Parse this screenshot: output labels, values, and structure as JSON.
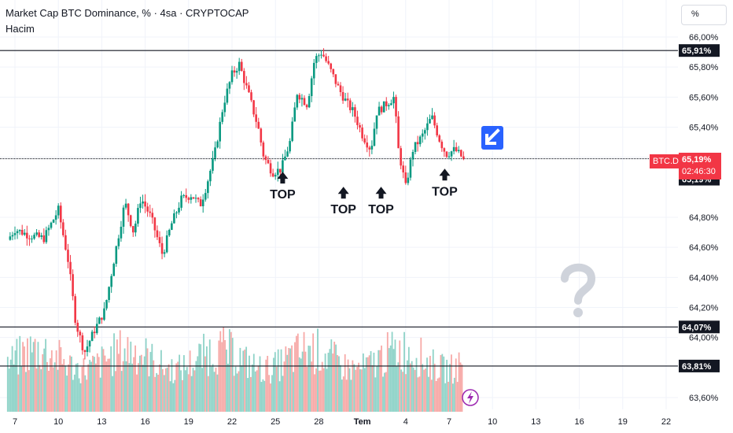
{
  "header": {
    "title": "Market Cap BTC Dominance, % · 4sa · CRYPTOCAP",
    "subtitle": "Hacim"
  },
  "scale_button": "%",
  "symbol_tag": "BTC.D",
  "last_price": {
    "value": "65,19%",
    "countdown": "02:46:30",
    "color": "#f23645"
  },
  "colors": {
    "up": "#089981",
    "down": "#f23645",
    "vol_up": "#8fd3c8",
    "vol_down": "#f7a9a7",
    "line": "#131722",
    "grid": "#f0f3fa",
    "arrow_badge": "#2962ff",
    "question": "#cfd3db"
  },
  "icons": [
    "arrow-down-left-icon",
    "question-mark-icon",
    "lightning-icon",
    "arrow-up-icon"
  ],
  "chart_data": {
    "type": "candlestick",
    "y_axis": {
      "ticks": [
        "66,00%",
        "65,80%",
        "65,60%",
        "65,40%",
        "65,20%",
        "64,80%",
        "64,60%",
        "64,40%",
        "64,20%",
        "64,00%",
        "63,60%"
      ],
      "tick_values": [
        66.0,
        65.8,
        65.6,
        65.4,
        65.2,
        64.8,
        64.6,
        64.4,
        64.2,
        64.0,
        63.6
      ],
      "ylim": [
        63.55,
        66.05
      ]
    },
    "x_axis": {
      "ticks": [
        "7",
        "10",
        "13",
        "16",
        "19",
        "22",
        "25",
        "28",
        "Tem",
        "4",
        "7",
        "10",
        "13",
        "16",
        "19",
        "22"
      ],
      "tick_day_index": [
        0,
        3,
        6,
        9,
        12,
        15,
        18,
        21,
        24,
        27,
        30,
        33,
        36,
        39,
        42,
        45
      ]
    },
    "horizontal_lines": [
      {
        "value": 65.91,
        "label": "65,91%"
      },
      {
        "value": 65.19,
        "label": "65,19%"
      },
      {
        "value": 64.07,
        "label": "64,07%"
      },
      {
        "value": 63.81,
        "label": "63,81%"
      }
    ],
    "annotations": [
      {
        "text": "TOP",
        "day_index": 18.5,
        "value": 65.03
      },
      {
        "text": "TOP",
        "day_index": 22.7,
        "value": 64.93
      },
      {
        "text": "TOP",
        "day_index": 25.3,
        "value": 64.93
      },
      {
        "text": "TOP",
        "day_index": 29.7,
        "value": 65.05
      }
    ],
    "close_anchors": [
      [
        -0.5,
        64.65
      ],
      [
        0.0,
        64.72
      ],
      [
        1.0,
        64.68
      ],
      [
        2.0,
        64.66
      ],
      [
        3.0,
        64.85
      ],
      [
        3.7,
        64.5
      ],
      [
        4.2,
        64.1
      ],
      [
        4.8,
        63.9
      ],
      [
        5.5,
        64.05
      ],
      [
        6.2,
        64.18
      ],
      [
        7.0,
        64.6
      ],
      [
        7.6,
        64.9
      ],
      [
        8.2,
        64.7
      ],
      [
        8.7,
        64.93
      ],
      [
        9.4,
        64.8
      ],
      [
        10.2,
        64.55
      ],
      [
        10.8,
        64.75
      ],
      [
        11.5,
        64.92
      ],
      [
        12.2,
        64.95
      ],
      [
        12.8,
        64.88
      ],
      [
        13.2,
        65.0
      ],
      [
        13.8,
        65.22
      ],
      [
        14.4,
        65.55
      ],
      [
        15.0,
        65.75
      ],
      [
        15.5,
        65.82
      ],
      [
        16.2,
        65.6
      ],
      [
        16.8,
        65.4
      ],
      [
        17.2,
        65.2
      ],
      [
        17.8,
        65.1
      ],
      [
        18.4,
        65.12
      ],
      [
        19.0,
        65.3
      ],
      [
        19.5,
        65.63
      ],
      [
        20.2,
        65.55
      ],
      [
        20.7,
        65.85
      ],
      [
        21.2,
        65.9
      ],
      [
        21.8,
        65.78
      ],
      [
        22.4,
        65.65
      ],
      [
        23.0,
        65.55
      ],
      [
        23.4,
        65.5
      ],
      [
        24.0,
        65.35
      ],
      [
        24.6,
        65.25
      ],
      [
        25.0,
        65.5
      ],
      [
        25.6,
        65.55
      ],
      [
        26.2,
        65.6
      ],
      [
        26.5,
        65.25
      ],
      [
        27.0,
        65.0
      ],
      [
        27.5,
        65.25
      ],
      [
        28.2,
        65.35
      ],
      [
        28.8,
        65.47
      ],
      [
        29.4,
        65.3
      ],
      [
        29.8,
        65.22
      ],
      [
        30.4,
        65.25
      ],
      [
        31.0,
        65.19
      ]
    ],
    "volume_bars": 300,
    "volume_range_value": [
      63.6,
      64.2
    ]
  }
}
